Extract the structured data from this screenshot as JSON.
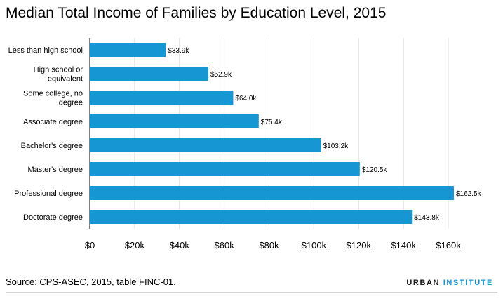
{
  "header": {
    "title": "Median Total Income of Families by Education Level, 2015"
  },
  "footer": {
    "source": "Source: CPS-ASEC, 2015, table FINC-01.",
    "brand_main": "URBAN",
    "brand_accent": "INSTITUTE"
  },
  "colors": {
    "bar": "#1696d2",
    "grid": "#dedede",
    "axis": "#000000"
  },
  "chart_data": {
    "type": "bar",
    "orientation": "horizontal",
    "title": "Median Total Income of Families by Education Level, 2015",
    "xlabel": "",
    "ylabel": "",
    "xlim": [
      0,
      160000
    ],
    "grid": true,
    "categories": [
      [
        "Less than high school"
      ],
      [
        "High school or",
        "equivalent"
      ],
      [
        "Some college, no",
        "degree"
      ],
      [
        "Associate degree"
      ],
      [
        "Bachelor's degree"
      ],
      [
        "Master's degree"
      ],
      [
        "Professional degree"
      ],
      [
        "Doctorate degree"
      ]
    ],
    "values": [
      33900,
      52900,
      64000,
      75400,
      103200,
      120500,
      162500,
      143800
    ],
    "data_labels": [
      "$33.9k",
      "$52.9k",
      "$64.0k",
      "$75.4k",
      "$103.2k",
      "$120.5k",
      "$162.5k",
      "$143.8k"
    ],
    "x_ticks": [
      0,
      20000,
      40000,
      60000,
      80000,
      100000,
      120000,
      140000,
      160000
    ],
    "x_tick_labels": [
      "$0",
      "$20k",
      "$40k",
      "$60k",
      "$80k",
      "$100k",
      "$120k",
      "$140k",
      "$160k"
    ]
  }
}
